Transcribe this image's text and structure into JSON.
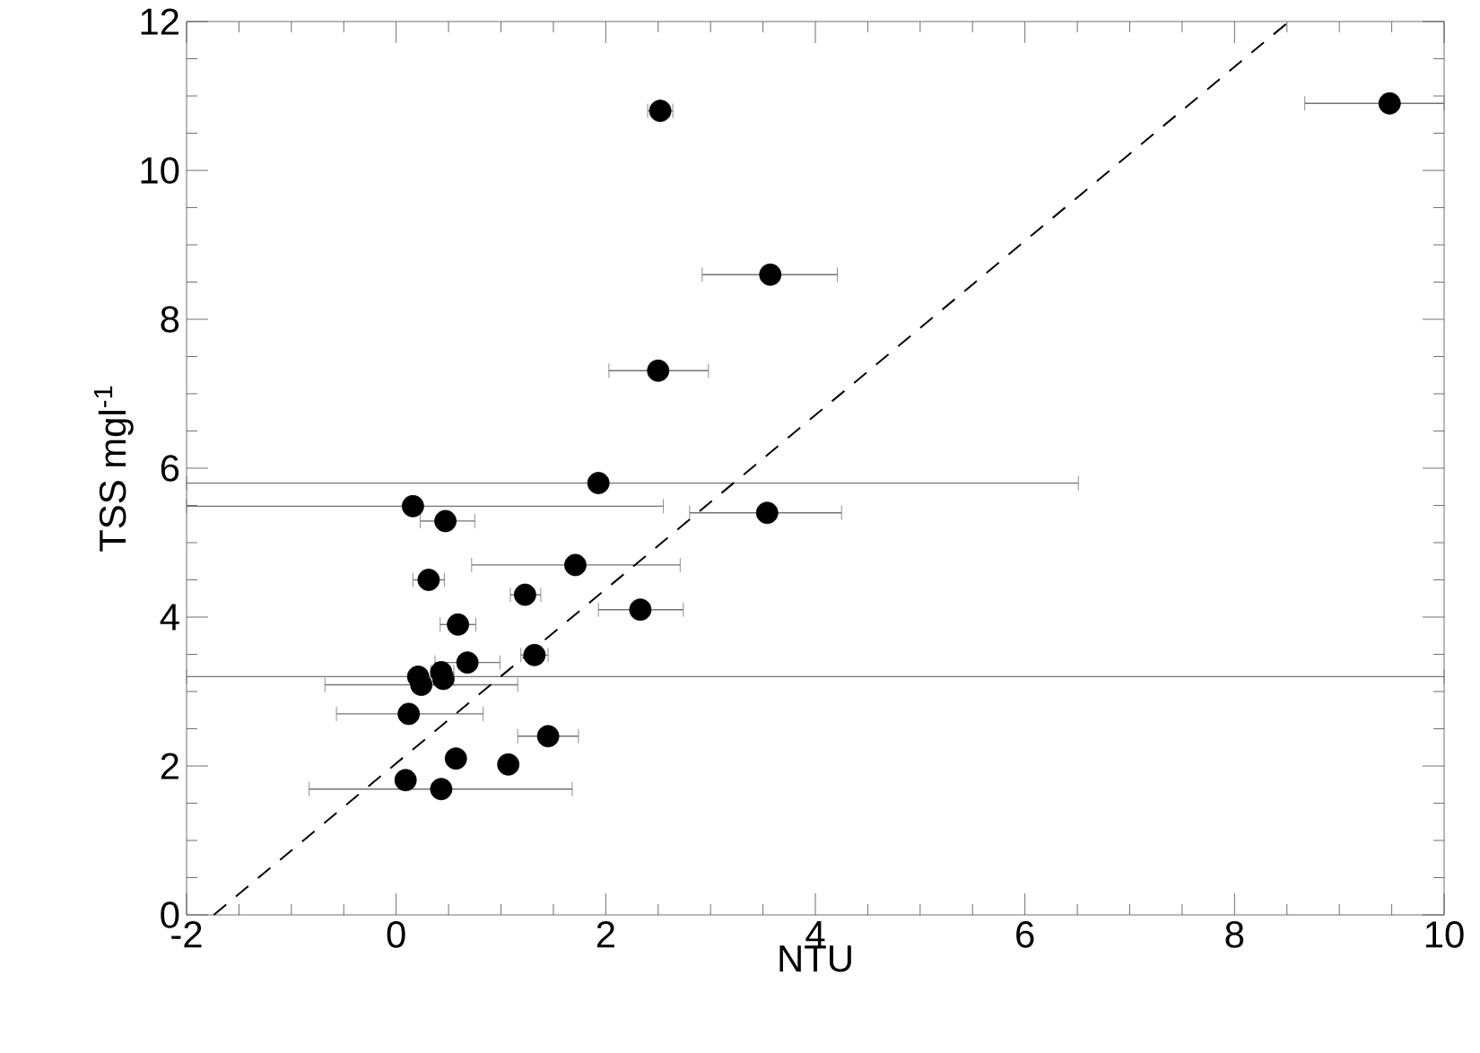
{
  "chart_data": {
    "type": "scatter",
    "xlabel": "NTU",
    "ylabel": "TSS mgl$^{-1}$",
    "xlim": [
      -2,
      10
    ],
    "ylim": [
      0,
      12
    ],
    "xticks": [
      -2,
      0,
      2,
      4,
      6,
      8,
      10
    ],
    "yticks": [
      0,
      2,
      4,
      6,
      8,
      10,
      12
    ],
    "series": [
      {
        "color": "#000000",
        "marker": "circle",
        "x": [
          2.52,
          9.48,
          3.57,
          2.5,
          1.93,
          0.16,
          0.47,
          3.54,
          1.71,
          0.31,
          1.23,
          2.33,
          0.59,
          1.32,
          0.68,
          0.43,
          0.45,
          0.21,
          0.24,
          0.12,
          1.45,
          0.57,
          1.07,
          0.09,
          0.43
        ],
        "values": [
          10.8,
          10.9,
          8.6,
          7.31,
          5.8,
          5.49,
          5.29,
          5.4,
          4.7,
          4.5,
          4.3,
          4.1,
          3.9,
          3.49,
          3.39,
          3.26,
          3.17,
          3.2,
          3.09,
          2.7,
          2.4,
          2.1,
          2.02,
          1.81,
          1.69
        ],
        "xerrors": [
          [
            2.4,
            2.64
          ],
          [
            8.67,
            10
          ],
          [
            2.92,
            4.21
          ],
          [
            2.03,
            2.98
          ],
          [
            -2,
            6.51
          ],
          [
            -2,
            2.55
          ],
          [
            0.23,
            0.75
          ],
          [
            2.8,
            4.25
          ],
          [
            0.72,
            2.71
          ],
          [
            0.16,
            0.46
          ],
          [
            1.09,
            1.38
          ],
          [
            1.93,
            2.74
          ],
          [
            0.42,
            0.76
          ],
          [
            1.19,
            1.45
          ],
          [
            0.37,
            0.99
          ],
          [
            0.33,
            0.55
          ],
          [
            0.36,
            0.55
          ],
          [
            -2,
            10
          ],
          [
            -0.68,
            1.16
          ],
          [
            -0.57,
            0.83
          ],
          [
            1.16,
            1.74
          ],
          [
            0.5,
            0.64
          ],
          null,
          [
            0.03,
            0.15
          ],
          [
            -0.83,
            1.68
          ]
        ]
      },
      {
        "type": "line",
        "color": "#000000",
        "line_style": "dashed",
        "marker": "none",
        "x": [
          -1.74,
          8.52
        ],
        "values": [
          0,
          12
        ]
      }
    ]
  }
}
